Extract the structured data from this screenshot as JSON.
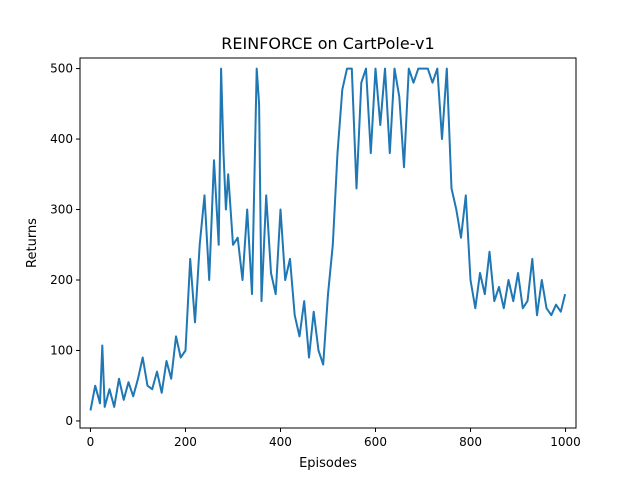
{
  "chart_data": {
    "type": "line",
    "title": "REINFORCE on CartPole-v1",
    "xlabel": "Episodes",
    "ylabel": "Returns",
    "xlim": [
      -22,
      1022
    ],
    "ylim": [
      -10,
      515
    ],
    "xticks": [
      0,
      200,
      400,
      600,
      800,
      1000
    ],
    "yticks": [
      0,
      100,
      200,
      300,
      400,
      500
    ],
    "grid": false,
    "legend": "none",
    "series": [
      {
        "color": "#1f77b4",
        "x": [
          0,
          10,
          20,
          25,
          30,
          40,
          50,
          60,
          70,
          80,
          90,
          100,
          110,
          120,
          130,
          140,
          150,
          160,
          170,
          180,
          190,
          200,
          210,
          220,
          230,
          240,
          250,
          260,
          270,
          275,
          280,
          285,
          290,
          300,
          310,
          320,
          330,
          340,
          350,
          355,
          360,
          370,
          380,
          390,
          400,
          410,
          420,
          430,
          440,
          450,
          460,
          470,
          480,
          490,
          500,
          510,
          520,
          530,
          540,
          550,
          560,
          570,
          580,
          590,
          600,
          610,
          620,
          630,
          640,
          650,
          660,
          670,
          680,
          690,
          700,
          710,
          720,
          730,
          740,
          750,
          760,
          770,
          780,
          790,
          800,
          810,
          820,
          830,
          840,
          850,
          860,
          870,
          880,
          890,
          900,
          910,
          920,
          930,
          940,
          950,
          960,
          970,
          980,
          990,
          999
        ],
        "values": [
          15,
          50,
          25,
          107,
          20,
          45,
          20,
          60,
          30,
          55,
          35,
          60,
          90,
          50,
          45,
          70,
          40,
          85,
          60,
          120,
          90,
          100,
          230,
          140,
          250,
          320,
          200,
          370,
          250,
          500,
          380,
          300,
          350,
          250,
          260,
          200,
          300,
          180,
          500,
          450,
          170,
          320,
          210,
          180,
          300,
          200,
          230,
          150,
          120,
          170,
          90,
          155,
          100,
          80,
          180,
          250,
          380,
          470,
          500,
          500,
          330,
          480,
          500,
          380,
          500,
          420,
          500,
          380,
          500,
          460,
          360,
          500,
          480,
          500,
          500,
          500,
          480,
          500,
          400,
          500,
          330,
          300,
          260,
          320,
          200,
          160,
          210,
          180,
          240,
          170,
          190,
          160,
          200,
          170,
          210,
          160,
          170,
          230,
          150,
          200,
          160,
          150,
          165,
          155,
          180
        ]
      }
    ]
  }
}
